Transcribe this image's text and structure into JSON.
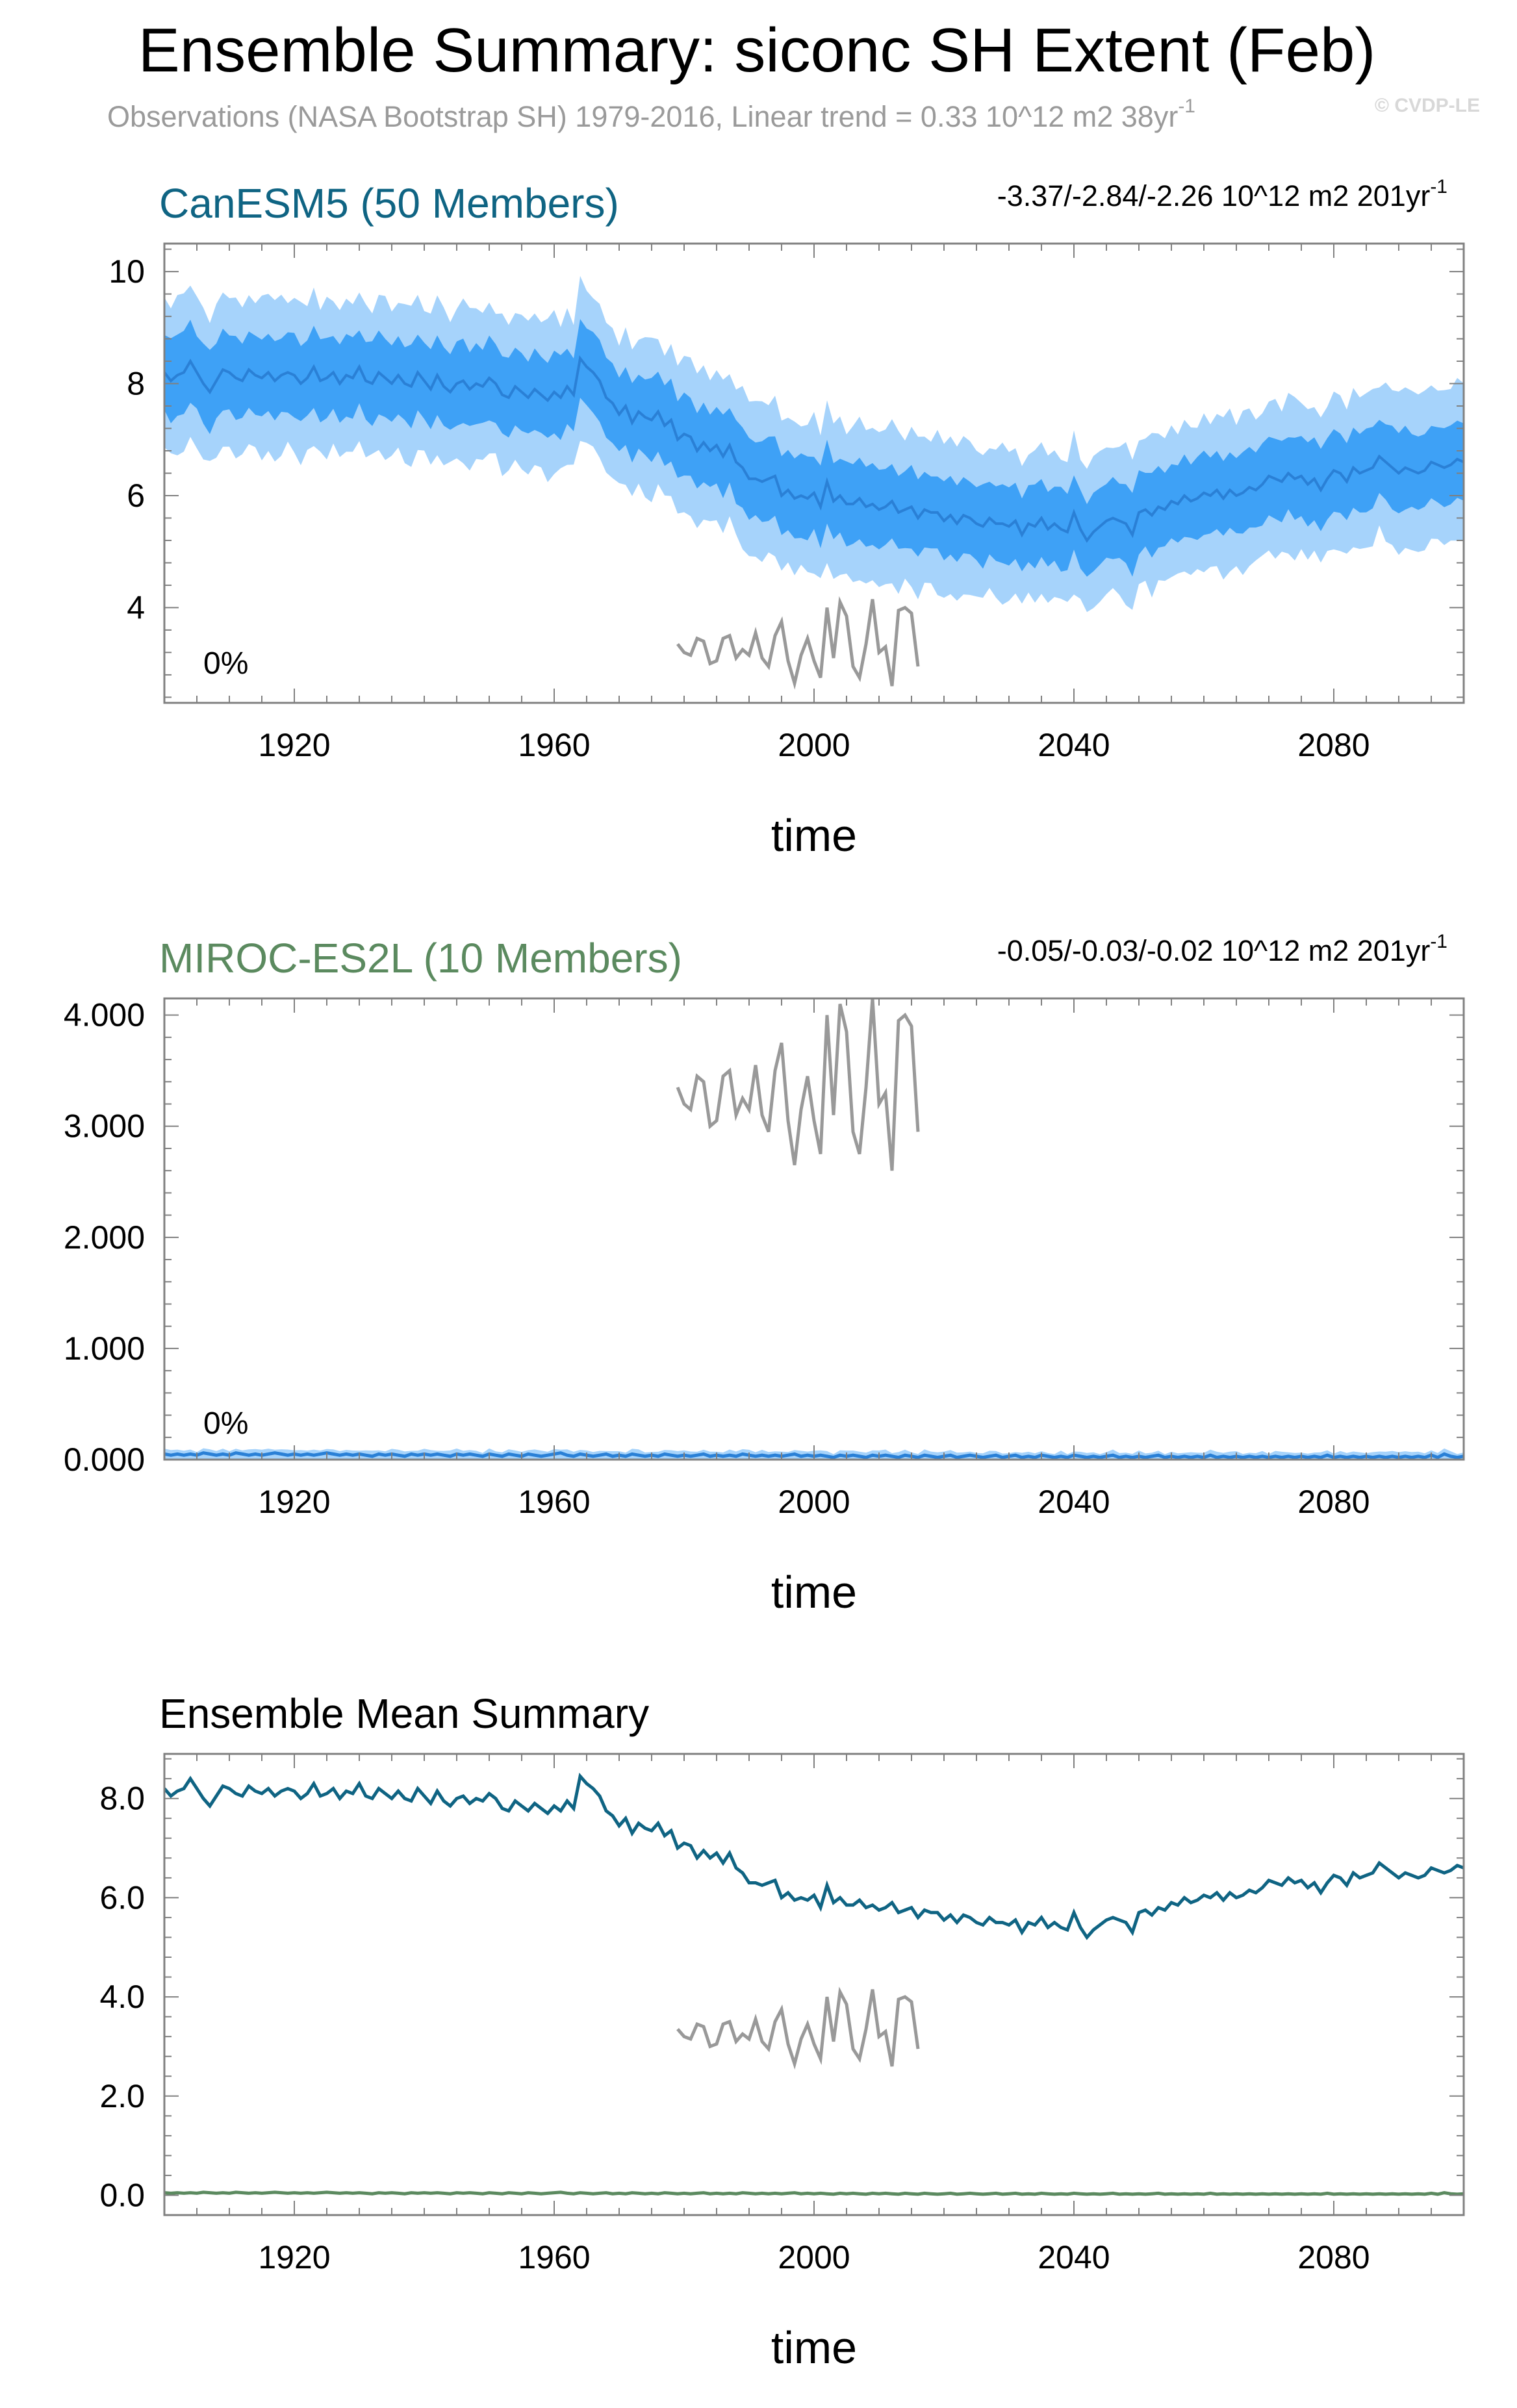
{
  "header": {
    "title": "Ensemble Summary: siconc SH Extent (Feb)",
    "subtitle": "Observations (NASA Bootstrap SH) 1979-2016, Linear trend = 0.33 10^12 m2 38yr",
    "subtitle_sup": "-1",
    "watermark": "© CVDP-LE"
  },
  "colors": {
    "band_outer": "#a6d3fb",
    "band_inner": "#3ea1f6",
    "ens_mean": "#2a80d6",
    "obs": "#999999",
    "canesm5": "#0f6483",
    "miroc": "#5b8a5f",
    "axis": "#808080"
  },
  "chart_data": [
    {
      "type": "line",
      "panel": "top",
      "title": "CanESM5 (50 Members)",
      "trend_label": "-3.37/-2.84/-2.26 10^12 m2 201yr",
      "trend_sup": "-1",
      "percent_label": "0%",
      "xlabel": "time",
      "xlim": [
        1900,
        2100
      ],
      "ylim": [
        2.3,
        10.5
      ],
      "xticks": [
        "1920",
        "1960",
        "2000",
        "2040",
        "2080"
      ],
      "yticks": [
        "4",
        "6",
        "8",
        "10"
      ],
      "series": [
        {
          "name": "ensemble-spread-outer",
          "style": "band"
        },
        {
          "name": "ensemble-spread-inner",
          "style": "band"
        },
        {
          "name": "ensemble-mean",
          "style": "line"
        },
        {
          "name": "observations",
          "style": "line"
        }
      ]
    },
    {
      "type": "line",
      "panel": "middle",
      "title": "MIROC-ES2L (10 Members)",
      "trend_label": "-0.05/-0.03/-0.02 10^12 m2 201yr",
      "trend_sup": "-1",
      "percent_label": "0%",
      "xlabel": "time",
      "xlim": [
        1900,
        2100
      ],
      "ylim": [
        0,
        4.15
      ],
      "xticks": [
        "1920",
        "1960",
        "2000",
        "2040",
        "2080"
      ],
      "yticks": [
        "0.000",
        "1.000",
        "2.000",
        "3.000",
        "4.000"
      ],
      "series": [
        {
          "name": "ensemble-spread",
          "style": "band"
        },
        {
          "name": "ensemble-mean",
          "style": "line"
        },
        {
          "name": "observations",
          "style": "line"
        }
      ]
    },
    {
      "type": "line",
      "panel": "bottom",
      "title": "Ensemble Mean Summary",
      "xlabel": "time",
      "xlim": [
        1900,
        2100
      ],
      "ylim": [
        -0.4,
        8.9
      ],
      "xticks": [
        "1920",
        "1960",
        "2000",
        "2040",
        "2080"
      ],
      "yticks": [
        "0.0",
        "2.0",
        "4.0",
        "6.0",
        "8.0"
      ],
      "series": [
        {
          "name": "CanESM5 ensemble mean",
          "style": "line"
        },
        {
          "name": "MIROC-ES2L ensemble mean",
          "style": "line"
        },
        {
          "name": "observations",
          "style": "line"
        }
      ]
    }
  ],
  "series_values": {
    "obs_years": [
      1979,
      1980,
      1981,
      1982,
      1983,
      1984,
      1985,
      1986,
      1987,
      1988,
      1989,
      1990,
      1991,
      1992,
      1993,
      1994,
      1995,
      1996,
      1997,
      1998,
      1999,
      2000,
      2001,
      2002,
      2003,
      2004,
      2005,
      2006,
      2007,
      2008,
      2009,
      2010,
      2011,
      2012,
      2013,
      2014,
      2015,
      2016
    ],
    "obs_values": [
      3.35,
      3.2,
      3.15,
      3.45,
      3.4,
      3.0,
      3.05,
      3.45,
      3.5,
      3.1,
      3.25,
      3.15,
      3.55,
      3.1,
      2.95,
      3.5,
      3.75,
      3.05,
      2.65,
      3.15,
      3.45,
      3.05,
      2.75,
      4.0,
      3.1,
      4.1,
      3.85,
      2.95,
      2.75,
      3.35,
      4.15,
      3.2,
      3.3,
      2.6,
      3.95,
      4.0,
      3.9,
      2.95
    ],
    "canesm5_mean": [
      8.2,
      8.05,
      8.15,
      8.2,
      8.4,
      8.2,
      8.0,
      7.85,
      8.05,
      8.25,
      8.2,
      8.1,
      8.05,
      8.25,
      8.15,
      8.1,
      8.2,
      8.05,
      8.15,
      8.2,
      8.15,
      8.0,
      8.1,
      8.3,
      8.05,
      8.1,
      8.2,
      8.0,
      8.15,
      8.1,
      8.3,
      8.05,
      8.0,
      8.2,
      8.1,
      8.0,
      8.15,
      8.0,
      7.95,
      8.2,
      8.05,
      7.9,
      8.15,
      7.95,
      7.85,
      8.0,
      8.05,
      7.9,
      8.0,
      7.95,
      8.1,
      8.0,
      7.8,
      7.75,
      7.95,
      7.85,
      7.75,
      7.9,
      7.8,
      7.7,
      7.85,
      7.75,
      7.95,
      7.8,
      8.45,
      8.3,
      8.2,
      8.05,
      7.75,
      7.65,
      7.45,
      7.6,
      7.3,
      7.5,
      7.4,
      7.35,
      7.5,
      7.25,
      7.35,
      7.0,
      7.1,
      7.05,
      6.8,
      6.95,
      6.8,
      6.9,
      6.7,
      6.9,
      6.6,
      6.5,
      6.3,
      6.3,
      6.25,
      6.3,
      6.35,
      6.0,
      6.1,
      5.95,
      6.0,
      5.95,
      6.05,
      5.8,
      6.25,
      5.9,
      6.0,
      5.85,
      5.85,
      5.95,
      5.8,
      5.85,
      5.75,
      5.8,
      5.9,
      5.7,
      5.75,
      5.8,
      5.6,
      5.75,
      5.7,
      5.7,
      5.55,
      5.65,
      5.5,
      5.65,
      5.6,
      5.5,
      5.45,
      5.6,
      5.5,
      5.5,
      5.45,
      5.55,
      5.3,
      5.5,
      5.45,
      5.6,
      5.4,
      5.5,
      5.4,
      5.35,
      5.7,
      5.4,
      5.2,
      5.35,
      5.45,
      5.55,
      5.6,
      5.55,
      5.5,
      5.3,
      5.7,
      5.75,
      5.65,
      5.8,
      5.75,
      5.9,
      5.85,
      6.0,
      5.9,
      5.95,
      6.05,
      6.0,
      6.1,
      5.95,
      6.1,
      6.0,
      6.05,
      6.15,
      6.1,
      6.2,
      6.35,
      6.3,
      6.25,
      6.4,
      6.3,
      6.35,
      6.2,
      6.3,
      6.1,
      6.3,
      6.45,
      6.4,
      6.25,
      6.5,
      6.4,
      6.45,
      6.5,
      6.7,
      6.6,
      6.5,
      6.4,
      6.5,
      6.45,
      6.4,
      6.45,
      6.6,
      6.55,
      6.5,
      6.55,
      6.65,
      6.6,
      6.55,
      6.7
    ],
    "miroc_mean": [
      0.05,
      0.04,
      0.05,
      0.04,
      0.05,
      0.04,
      0.06,
      0.05,
      0.04,
      0.05,
      0.04,
      0.06,
      0.05,
      0.04,
      0.05,
      0.04,
      0.05,
      0.06,
      0.05,
      0.04,
      0.05,
      0.04,
      0.05,
      0.04,
      0.05,
      0.06,
      0.05,
      0.04,
      0.05,
      0.04,
      0.05,
      0.04,
      0.03,
      0.05,
      0.04,
      0.05,
      0.04,
      0.03,
      0.05,
      0.04,
      0.05,
      0.04,
      0.05,
      0.04,
      0.03,
      0.05,
      0.04,
      0.05,
      0.04,
      0.03,
      0.05,
      0.04,
      0.03,
      0.05,
      0.04,
      0.03,
      0.05,
      0.04,
      0.03,
      0.04,
      0.05,
      0.06,
      0.04,
      0.03,
      0.05,
      0.04,
      0.03,
      0.04,
      0.05,
      0.03,
      0.04,
      0.03,
      0.05,
      0.04,
      0.03,
      0.04,
      0.03,
      0.05,
      0.04,
      0.03,
      0.04,
      0.03,
      0.04,
      0.05,
      0.03,
      0.04,
      0.03,
      0.04,
      0.03,
      0.05,
      0.04,
      0.03,
      0.04,
      0.03,
      0.04,
      0.03,
      0.04,
      0.05,
      0.03,
      0.04,
      0.03,
      0.04,
      0.03,
      0.02,
      0.04,
      0.03,
      0.04,
      0.03,
      0.02,
      0.04,
      0.03,
      0.04,
      0.03,
      0.02,
      0.04,
      0.03,
      0.02,
      0.04,
      0.03,
      0.02,
      0.03,
      0.04,
      0.02,
      0.03,
      0.04,
      0.03,
      0.02,
      0.03,
      0.04,
      0.02,
      0.03,
      0.04,
      0.02,
      0.03,
      0.02,
      0.04,
      0.03,
      0.02,
      0.03,
      0.02,
      0.04,
      0.03,
      0.02,
      0.03,
      0.02,
      0.03,
      0.04,
      0.02,
      0.03,
      0.02,
      0.03,
      0.02,
      0.03,
      0.04,
      0.02,
      0.03,
      0.02,
      0.03,
      0.02,
      0.03,
      0.02,
      0.04,
      0.02,
      0.03,
      0.02,
      0.03,
      0.02,
      0.03,
      0.02,
      0.03,
      0.02,
      0.03,
      0.02,
      0.03,
      0.02,
      0.03,
      0.02,
      0.03,
      0.02,
      0.04,
      0.02,
      0.03,
      0.02,
      0.03,
      0.02,
      0.03,
      0.02,
      0.03,
      0.02,
      0.03,
      0.02,
      0.03,
      0.02,
      0.03,
      0.02,
      0.04,
      0.02,
      0.05,
      0.03,
      0.02,
      0.03
    ]
  }
}
